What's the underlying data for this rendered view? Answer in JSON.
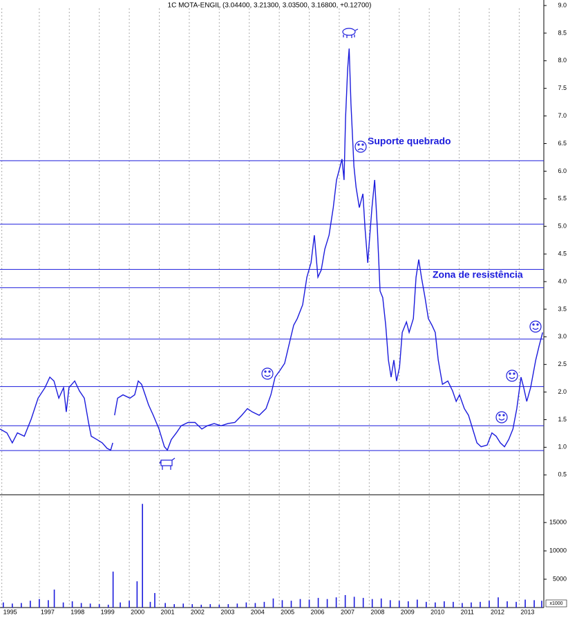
{
  "chart_data": [
    {
      "type": "line",
      "title": "1C MOTA-ENGIL (3.04400, 3.21300, 3.03500, 3.16800, +0.12700)",
      "color": "#1a1adc",
      "x": [
        1995.69,
        1995.92,
        1996.1,
        1996.27,
        1996.5,
        1996.73,
        1996.96,
        1997.19,
        1997.35,
        1997.49,
        1997.65,
        1997.81,
        1997.9,
        1997.99,
        1998.18,
        1998.34,
        1998.5,
        1998.64,
        1998.73,
        1998.92,
        1999.1,
        1999.26,
        1999.38,
        1999.45,
        1999.48,
        1999.51,
        1999.61,
        1999.79,
        2000.02,
        2000.18,
        2000.3,
        2000.41,
        2000.53,
        2000.64,
        2000.8,
        2000.99,
        2001.17,
        2001.27,
        2001.4,
        2001.57,
        2001.73,
        2001.96,
        2002.19,
        2002.42,
        2002.6,
        2002.83,
        2003.06,
        2003.29,
        2003.52,
        2003.75,
        2003.94,
        2004.1,
        2004.33,
        2004.56,
        2004.72,
        2004.86,
        2005.02,
        2005.18,
        2005.37,
        2005.48,
        2005.6,
        2005.78,
        2005.92,
        2006.06,
        2006.17,
        2006.29,
        2006.4,
        2006.52,
        2006.66,
        2006.8,
        2006.91,
        2007.03,
        2007.09,
        2007.16,
        2007.21,
        2007.28,
        2007.33,
        2007.39,
        2007.49,
        2007.56,
        2007.67,
        2007.79,
        2007.86,
        2007.95,
        2008.02,
        2008.09,
        2008.18,
        2008.27,
        2008.36,
        2008.45,
        2008.55,
        2008.64,
        2008.73,
        2008.82,
        2008.91,
        2009.01,
        2009.1,
        2009.24,
        2009.33,
        2009.47,
        2009.56,
        2009.65,
        2009.74,
        2009.86,
        2009.97,
        2010.09,
        2010.2,
        2010.3,
        2010.44,
        2010.62,
        2010.78,
        2010.9,
        2011.01,
        2011.17,
        2011.31,
        2011.45,
        2011.59,
        2011.73,
        2011.93,
        2012.09,
        2012.23,
        2012.37,
        2012.51,
        2012.65,
        2012.79,
        2012.92,
        2013.06,
        2013.15,
        2013.25,
        2013.38,
        2013.55,
        2013.66,
        2013.78
      ],
      "values": [
        1.33,
        1.26,
        1.08,
        1.26,
        1.2,
        1.51,
        1.89,
        2.08,
        2.27,
        2.2,
        1.89,
        2.08,
        1.64,
        2.08,
        2.2,
        2.02,
        1.89,
        1.45,
        1.2,
        1.14,
        1.08,
        0.98,
        0.95,
        1.08,
        null,
        1.58,
        1.89,
        1.95,
        1.89,
        1.95,
        2.2,
        2.14,
        1.95,
        1.77,
        1.58,
        1.33,
        1.01,
        0.95,
        1.14,
        1.26,
        1.39,
        1.45,
        1.45,
        1.33,
        1.39,
        1.43,
        1.39,
        1.43,
        1.45,
        1.58,
        1.7,
        1.64,
        1.58,
        1.7,
        1.95,
        2.27,
        2.39,
        2.52,
        2.96,
        3.21,
        3.33,
        3.58,
        4.08,
        4.34,
        4.84,
        4.08,
        4.21,
        4.59,
        4.84,
        5.34,
        5.84,
        6.09,
        6.22,
        5.84,
        6.97,
        7.85,
        8.22,
        7.22,
        6.09,
        5.71,
        5.34,
        5.59,
        4.96,
        4.34,
        4.84,
        5.34,
        5.84,
        4.96,
        3.83,
        3.71,
        3.21,
        2.58,
        2.27,
        2.58,
        2.2,
        2.45,
        3.08,
        3.27,
        3.08,
        3.33,
        4.08,
        4.4,
        4.08,
        3.71,
        3.33,
        3.21,
        3.08,
        2.58,
        2.14,
        2.2,
        2.02,
        1.83,
        1.95,
        1.7,
        1.58,
        1.33,
        1.08,
        1.01,
        1.04,
        1.26,
        1.2,
        1.08,
        1.01,
        1.14,
        1.33,
        1.7,
        2.27,
        2.08,
        1.83,
        2.08,
        2.58,
        2.83,
        3.08
      ],
      "hlines": [
        6.19,
        5.04,
        4.22,
        3.89,
        2.96,
        2.1,
        1.39,
        0.94
      ],
      "annotations": [
        "Suporte quebrado",
        "Zona de resistência"
      ],
      "xlim": [
        1995.69,
        2013.82
      ],
      "xticks": [
        {
          "value": 1995.75,
          "label": "1995"
        },
        1997,
        1998,
        1999,
        2000,
        2001,
        2002,
        2003,
        2004,
        2005,
        2006,
        2007,
        2008,
        2009,
        2010,
        2011,
        2012,
        2013
      ],
      "ylim": [
        0.14,
        9.1
      ],
      "yticks": [
        0.5,
        {
          "value": 1,
          "label": "1.0"
        },
        1.5,
        {
          "value": 2,
          "label": "2.0"
        },
        2.5,
        {
          "value": 3,
          "label": "3.0"
        },
        3.5,
        {
          "value": 4,
          "label": "4.0"
        },
        4.5,
        {
          "value": 5,
          "label": "5.0"
        },
        5.5,
        {
          "value": 6,
          "label": "6.0"
        },
        6.5,
        {
          "value": 7,
          "label": "7.0"
        },
        7.5,
        {
          "value": 8,
          "label": "8.0"
        },
        8.5,
        {
          "value": 9,
          "label": "9.0"
        }
      ],
      "grid": true
    },
    {
      "type": "bar",
      "color": "#1a1adc",
      "unit_label": "x1000",
      "x": [
        1995.8,
        1996.1,
        1996.4,
        1996.7,
        1997.0,
        1997.3,
        1997.5,
        1997.8,
        1998.1,
        1998.4,
        1998.7,
        1999.0,
        1999.3,
        1999.46,
        1999.7,
        2000.0,
        2000.26,
        2000.44,
        2000.7,
        2000.85,
        2001.2,
        2001.5,
        2001.8,
        2002.1,
        2002.4,
        2002.7,
        2003.0,
        2003.3,
        2003.6,
        2003.9,
        2004.2,
        2004.5,
        2004.8,
        2005.1,
        2005.4,
        2005.7,
        2006.0,
        2006.3,
        2006.6,
        2006.9,
        2007.2,
        2007.5,
        2007.8,
        2008.1,
        2008.4,
        2008.7,
        2009.0,
        2009.3,
        2009.6,
        2009.9,
        2010.2,
        2010.5,
        2010.8,
        2011.1,
        2011.4,
        2011.7,
        2012.0,
        2012.3,
        2012.6,
        2012.9,
        2013.2,
        2013.5,
        2013.75
      ],
      "values": [
        900,
        700,
        800,
        1200,
        1500,
        1300,
        3170,
        900,
        1100,
        800,
        700,
        600,
        500,
        6340,
        900,
        1200,
        4630,
        18290,
        1000,
        2560,
        800,
        600,
        700,
        600,
        500,
        600,
        500,
        600,
        700,
        900,
        800,
        1000,
        1600,
        1300,
        1200,
        1500,
        1400,
        1700,
        1500,
        1800,
        2200,
        1900,
        1700,
        1500,
        1600,
        1300,
        1200,
        1100,
        1400,
        1000,
        900,
        1100,
        1000,
        800,
        900,
        1000,
        1200,
        1800,
        1100,
        1000,
        1400,
        1300,
        1200
      ],
      "ylim": [
        0,
        19900
      ],
      "yticks": [
        5000,
        10000,
        15000
      ]
    }
  ]
}
